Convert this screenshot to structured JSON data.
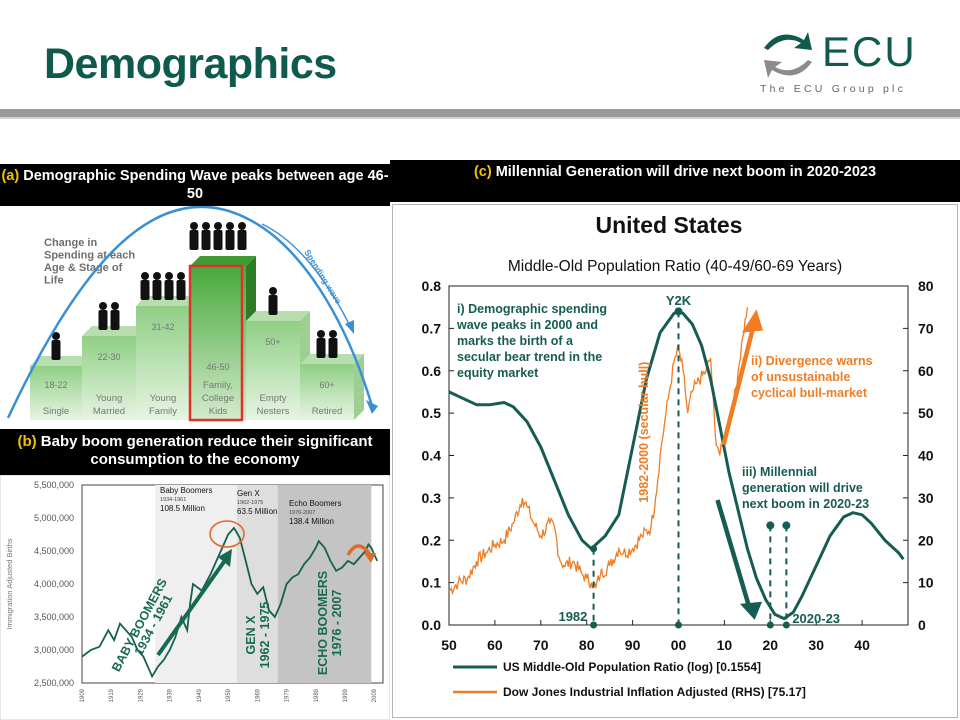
{
  "page": {
    "title": "Demographics"
  },
  "logo": {
    "name": "ECU",
    "tagline": "The ECU Group plc"
  },
  "panel_a": {
    "header_prefix": "(a)",
    "header_text": "Demographic Spending Wave peaks between age 46-50",
    "caption_lines": [
      "Change in",
      "Spending at each",
      "Age & Stage of",
      "Life"
    ],
    "arrow_label": "Spending wave",
    "steps": [
      {
        "age": "18-22",
        "stage": "Single"
      },
      {
        "age": "22-30",
        "stage": "Young Married"
      },
      {
        "age": "31-42",
        "stage": "Young Family"
      },
      {
        "age": "46-50",
        "stage": "Family, College Kids"
      },
      {
        "age": "50+",
        "stage": "Empty Nesters"
      },
      {
        "age": "60+",
        "stage": "Retired"
      }
    ]
  },
  "panel_b": {
    "header_prefix": "(b)",
    "header_text": "Baby boom generation reduce their significant consumption to the economy",
    "ylabel": "Immigration Adjusted Births",
    "yticks": [
      "5,500,000",
      "5,000,000",
      "4,500,000",
      "4,000,000",
      "3,500,000",
      "3,000,000",
      "2,500,000"
    ],
    "xticks": [
      "1909",
      "1919",
      "1929",
      "1939",
      "1949",
      "1959",
      "1969",
      "1979",
      "1989",
      "1999",
      "2009"
    ],
    "cohorts": [
      {
        "name": "Baby Boomers",
        "years": "1934-1961",
        "total": "108.5 Million"
      },
      {
        "name": "Gen X",
        "years": "1962-1975",
        "total": "63.5 Million"
      },
      {
        "name": "Echo Boomers",
        "years": "1976-2007",
        "total": "138.4 Million"
      }
    ],
    "vertical_labels": [
      {
        "line1": "BABY BOOMERS",
        "line2": "1934 - 1961"
      },
      {
        "line1": "GEN X",
        "line2": "1962 - 1975"
      },
      {
        "line1": "ECHO BOOMERS",
        "line2": "1976 - 2007"
      }
    ]
  },
  "panel_c": {
    "header_prefix": "(c)",
    "header_text": "Millennial Generation will drive next boom in 2020-2023"
  },
  "chart_data": [
    {
      "type": "line",
      "title": "United States",
      "subtitle": "Middle-Old Population Ratio (40-49/60-69 Years)",
      "x_axis": {
        "ticks": [
          "50",
          "60",
          "70",
          "80",
          "90",
          "00",
          "10",
          "20",
          "30",
          "40"
        ],
        "range": [
          1950,
          2050
        ]
      },
      "y_left": {
        "ticks": [
          "0.0",
          "0.1",
          "0.2",
          "0.3",
          "0.4",
          "0.5",
          "0.6",
          "0.7",
          "0.8"
        ],
        "range": [
          0,
          0.8
        ]
      },
      "y_right": {
        "ticks": [
          "0",
          "10",
          "20",
          "30",
          "40",
          "50",
          "60",
          "70",
          "80"
        ],
        "range": [
          0,
          80
        ]
      },
      "grid": false,
      "legend_position": "bottom",
      "series": [
        {
          "name": "US Middle-Old Population Ratio (log) [0.1554]",
          "axis": "left",
          "color": "#165c52",
          "x": [
            1950,
            1953,
            1956,
            1959,
            1962,
            1964,
            1967,
            1970,
            1973,
            1976,
            1979,
            1981,
            1984,
            1987,
            1990,
            1993,
            1996,
            1999,
            2000,
            2001,
            2003,
            2005,
            2007,
            2009,
            2011,
            2013,
            2015,
            2017,
            2019,
            2021,
            2023,
            2025,
            2027,
            2030,
            2033,
            2036,
            2038,
            2040,
            2042,
            2045,
            2048,
            2049
          ],
          "y": [
            0.55,
            0.535,
            0.52,
            0.52,
            0.525,
            0.515,
            0.48,
            0.42,
            0.34,
            0.26,
            0.2,
            0.18,
            0.21,
            0.26,
            0.42,
            0.58,
            0.69,
            0.735,
            0.74,
            0.735,
            0.71,
            0.66,
            0.58,
            0.47,
            0.36,
            0.27,
            0.18,
            0.11,
            0.06,
            0.025,
            0.015,
            0.03,
            0.07,
            0.14,
            0.21,
            0.255,
            0.265,
            0.26,
            0.24,
            0.2,
            0.17,
            0.155
          ]
        },
        {
          "name": "Dow Jones Industrial Inflation Adjusted (RHS) [75.17]",
          "axis": "right",
          "color": "#f07d23",
          "x": [
            1950,
            1952,
            1954,
            1956,
            1958,
            1960,
            1962,
            1964,
            1966,
            1967,
            1968,
            1970,
            1972,
            1973,
            1974,
            1975,
            1977,
            1979,
            1980,
            1981,
            1982,
            1983,
            1985,
            1987,
            1988,
            1990,
            1992,
            1994,
            1995,
            1996,
            1997,
            1998,
            1999,
            2000,
            2001,
            2002,
            2003,
            2004,
            2006,
            2007,
            2008,
            2009,
            2010,
            2011,
            2012,
            2013,
            2014,
            2015
          ],
          "y": [
            8,
            10,
            11,
            15,
            17,
            19,
            20,
            24,
            30,
            28,
            25,
            21,
            24,
            23,
            16,
            14,
            15,
            12,
            11,
            10,
            9,
            12,
            14,
            18,
            17,
            18,
            21,
            23,
            30,
            40,
            48,
            55,
            62,
            65,
            60,
            50,
            55,
            57,
            60,
            63,
            45,
            40,
            44,
            48,
            52,
            60,
            68,
            75
          ]
        }
      ],
      "annotations": {
        "note_i": [
          "i) Demographic spending",
          "wave peaks in 2000 and",
          "marks the birth of a",
          "secular bear trend in the",
          "equity market"
        ],
        "note_ii": [
          "ii) Divergence warns",
          "of unsustainable",
          "cyclical bull-market"
        ],
        "note_iii": [
          "iii) Millennial",
          "generation will drive",
          "next boom in 2020-23"
        ],
        "label_y2k": "Y2K",
        "label_1982": "1982",
        "label_2020_23": "2020-23",
        "label_secular": "1982-2000 (secular bull)"
      }
    },
    {
      "type": "line",
      "title": "",
      "x": [
        1909,
        1912,
        1915,
        1918,
        1920,
        1922,
        1924,
        1926,
        1928,
        1930,
        1932,
        1933,
        1935,
        1937,
        1939,
        1941,
        1943,
        1945,
        1946,
        1947,
        1950,
        1953,
        1955,
        1957,
        1959,
        1961,
        1963,
        1965,
        1967,
        1969,
        1971,
        1973,
        1975,
        1977,
        1979,
        1981,
        1983,
        1985,
        1987,
        1989,
        1990,
        1992,
        1994,
        1996,
        1998,
        2000,
        2002,
        2004,
        2006,
        2007,
        2008,
        2009,
        2010
      ],
      "y": [
        2900000,
        3000000,
        3050000,
        3300000,
        3150000,
        3400000,
        3300000,
        3200000,
        3000000,
        2900000,
        2700000,
        2600000,
        2750000,
        2850000,
        3000000,
        3200000,
        3500000,
        3300000,
        3700000,
        4000000,
        3900000,
        4150000,
        4350000,
        4550000,
        4750000,
        4850000,
        4700000,
        4350000,
        4000000,
        3850000,
        3950000,
        3600000,
        3500000,
        3700000,
        4000000,
        4100000,
        4150000,
        4300000,
        4400000,
        4550000,
        4650000,
        4550000,
        4350000,
        4200000,
        4250000,
        4350000,
        4300000,
        4400000,
        4500000,
        4600000,
        4550000,
        4450000,
        4350000
      ],
      "ylim": [
        2500000,
        5500000
      ],
      "xlim": [
        1909,
        2012
      ]
    }
  ],
  "colors": {
    "brand": "#0f5a4c",
    "header_bg": "#000000",
    "accent_yellow": "#f2c200",
    "green_dark": "#165c52",
    "orange": "#f07d23"
  }
}
